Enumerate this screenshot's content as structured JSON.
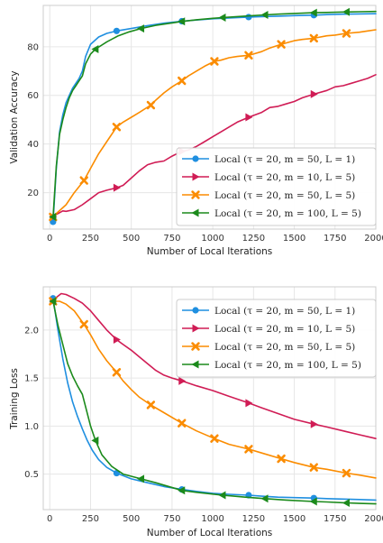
{
  "chart_data": [
    {
      "type": "line",
      "xlabel": "Number of Local Iterations",
      "ylabel": "Validation Accuracy",
      "xlim": [
        -40,
        2000
      ],
      "ylim": [
        5,
        97
      ],
      "xticks": [
        0,
        250,
        500,
        750,
        1000,
        1250,
        1500,
        1750,
        2000
      ],
      "yticks": [
        20,
        40,
        60,
        80
      ],
      "grid": true,
      "legend_position": "lower-right",
      "series": [
        {
          "name": "Local (τ = 20, m = 50, L = 1)",
          "color": "#1f8fe0",
          "marker": "circle",
          "markers_at": [
            20,
            410,
            810,
            1220,
            1620
          ],
          "x": [
            20,
            40,
            60,
            80,
            100,
            120,
            140,
            160,
            180,
            200,
            220,
            250,
            300,
            350,
            410,
            500,
            600,
            700,
            810,
            900,
            1000,
            1100,
            1220,
            1300,
            1400,
            1500,
            1620,
            1700,
            1800,
            1900,
            2000
          ],
          "y": [
            8,
            30,
            45,
            52,
            57,
            60,
            63,
            65,
            67,
            70,
            76,
            81,
            84,
            85.5,
            86.5,
            87.5,
            88.7,
            89.7,
            90.5,
            91,
            91.5,
            91.8,
            92.2,
            92.4,
            92.6,
            92.8,
            93,
            93.2,
            93.4,
            93.5,
            93.6
          ]
        },
        {
          "name": "Local (τ = 20, m = 10, L = 5)",
          "color": "#d01c55",
          "marker": "triangle-right",
          "markers_at": [
            20,
            410,
            810,
            1220,
            1620
          ],
          "x": [
            20,
            40,
            80,
            100,
            150,
            200,
            250,
            300,
            350,
            410,
            450,
            500,
            550,
            600,
            650,
            700,
            750,
            810,
            850,
            900,
            950,
            1000,
            1050,
            1100,
            1150,
            1220,
            1300,
            1350,
            1400,
            1450,
            1500,
            1550,
            1620,
            1700,
            1750,
            1800,
            1850,
            1900,
            1950,
            2000
          ],
          "y": [
            10,
            11,
            12.5,
            12.3,
            13,
            15,
            17.5,
            20,
            21,
            22,
            23,
            26,
            29,
            31.5,
            32.5,
            33,
            35,
            37,
            37.5,
            39,
            41,
            43,
            45,
            47,
            49,
            51,
            53,
            55,
            55.5,
            56.5,
            57.5,
            59,
            60.5,
            62,
            63.5,
            64,
            65,
            66,
            67,
            68.5
          ]
        },
        {
          "name": "Local (τ = 20, m = 50, L = 5)",
          "color": "#fb8c00",
          "marker": "x",
          "markers_at": [
            20,
            210,
            410,
            620,
            810,
            1010,
            1220,
            1420,
            1620,
            1820
          ],
          "x": [
            20,
            50,
            100,
            150,
            210,
            250,
            300,
            350,
            410,
            450,
            500,
            550,
            620,
            650,
            700,
            750,
            810,
            850,
            900,
            950,
            1010,
            1050,
            1100,
            1150,
            1220,
            1250,
            1300,
            1350,
            1420,
            1500,
            1550,
            1620,
            1700,
            1750,
            1820,
            1900,
            1950,
            2000
          ],
          "y": [
            10,
            12,
            15,
            20,
            25,
            30,
            36,
            41,
            47,
            49,
            51,
            53,
            56,
            58,
            61,
            63.5,
            66,
            68,
            70,
            72,
            74,
            74.5,
            75.5,
            76,
            76.5,
            77,
            78,
            79.5,
            81,
            82.5,
            83,
            83.5,
            84.5,
            84.8,
            85.5,
            86,
            86.5,
            87
          ]
        },
        {
          "name": "Local (τ = 20, m = 100, L = 5)",
          "color": "#1b8a1b",
          "marker": "triangle-left",
          "markers_at": [
            20,
            280,
            560,
            810,
            1060,
            1320,
            1620,
            1820
          ],
          "x": [
            20,
            40,
            60,
            80,
            100,
            120,
            140,
            160,
            180,
            200,
            220,
            250,
            280,
            350,
            420,
            480,
            560,
            650,
            750,
            810,
            900,
            1000,
            1060,
            1150,
            1250,
            1320,
            1400,
            1500,
            1620,
            1700,
            1820,
            1900,
            2000
          ],
          "y": [
            10,
            31,
            44,
            50,
            55,
            59,
            62,
            64,
            66,
            68,
            73,
            77,
            79,
            82,
            84.5,
            86,
            87.5,
            88.8,
            89.8,
            90.4,
            91.1,
            91.7,
            92,
            92.4,
            92.8,
            93.1,
            93.4,
            93.7,
            94,
            94.1,
            94.3,
            94.4,
            94.5
          ]
        }
      ]
    },
    {
      "type": "line",
      "xlabel": "Number of Local Iterations",
      "ylabel": "Training Loss",
      "xlim": [
        -40,
        2000
      ],
      "ylim": [
        0.13,
        2.45
      ],
      "xticks": [
        0,
        250,
        500,
        750,
        1000,
        1250,
        1500,
        1750,
        2000
      ],
      "yticks": [
        0.5,
        1.0,
        1.5,
        2.0
      ],
      "ytick_labels": [
        "0.5",
        "1.0",
        "1.5",
        "2.0"
      ],
      "grid": true,
      "legend_position": "top-right",
      "series": [
        {
          "name": "Local (τ = 20, m = 50, L = 1)",
          "color": "#1f8fe0",
          "marker": "circle",
          "markers_at": [
            20,
            410,
            810,
            1220,
            1620
          ],
          "x": [
            20,
            50,
            80,
            110,
            140,
            170,
            200,
            230,
            260,
            300,
            350,
            410,
            500,
            600,
            700,
            810,
            900,
            1000,
            1100,
            1220,
            1300,
            1400,
            1500,
            1620,
            1700,
            1800,
            1900,
            2000
          ],
          "y": [
            2.33,
            2.0,
            1.7,
            1.45,
            1.25,
            1.1,
            0.97,
            0.85,
            0.75,
            0.65,
            0.57,
            0.51,
            0.45,
            0.41,
            0.37,
            0.34,
            0.32,
            0.3,
            0.29,
            0.28,
            0.27,
            0.26,
            0.255,
            0.25,
            0.245,
            0.24,
            0.235,
            0.23
          ]
        },
        {
          "name": "Local (τ = 20, m = 10, L = 5)",
          "color": "#d01c55",
          "marker": "triangle-right",
          "markers_at": [
            20,
            410,
            810,
            1220,
            1620
          ],
          "x": [
            20,
            40,
            70,
            100,
            150,
            200,
            250,
            300,
            350,
            410,
            450,
            500,
            550,
            600,
            650,
            700,
            750,
            810,
            900,
            1000,
            1100,
            1220,
            1300,
            1400,
            1500,
            1620,
            1700,
            1800,
            1900,
            2000
          ],
          "y": [
            2.3,
            2.34,
            2.38,
            2.37,
            2.33,
            2.28,
            2.2,
            2.1,
            2.0,
            1.9,
            1.85,
            1.79,
            1.72,
            1.65,
            1.58,
            1.53,
            1.5,
            1.47,
            1.42,
            1.37,
            1.31,
            1.24,
            1.19,
            1.13,
            1.07,
            1.02,
            0.99,
            0.95,
            0.91,
            0.87
          ]
        },
        {
          "name": "Local (τ = 20, m = 50, L = 5)",
          "color": "#fb8c00",
          "marker": "x",
          "markers_at": [
            20,
            210,
            410,
            620,
            810,
            1010,
            1220,
            1420,
            1620,
            1820
          ],
          "x": [
            20,
            60,
            100,
            150,
            210,
            250,
            300,
            350,
            410,
            450,
            500,
            550,
            620,
            700,
            810,
            900,
            1010,
            1100,
            1220,
            1300,
            1420,
            1500,
            1620,
            1700,
            1820,
            1900,
            2000
          ],
          "y": [
            2.3,
            2.3,
            2.27,
            2.2,
            2.06,
            1.95,
            1.8,
            1.68,
            1.56,
            1.47,
            1.38,
            1.3,
            1.22,
            1.14,
            1.03,
            0.95,
            0.87,
            0.81,
            0.76,
            0.72,
            0.66,
            0.62,
            0.57,
            0.55,
            0.51,
            0.49,
            0.46
          ]
        },
        {
          "name": "Local (τ = 20, m = 100, L = 5)",
          "color": "#1b8a1b",
          "marker": "triangle-left",
          "markers_at": [
            20,
            280,
            560,
            810,
            1060,
            1320,
            1620,
            1820
          ],
          "x": [
            20,
            50,
            80,
            110,
            140,
            170,
            200,
            220,
            250,
            280,
            320,
            380,
            450,
            560,
            650,
            810,
            900,
            1060,
            1200,
            1320,
            1450,
            1620,
            1700,
            1820,
            1900,
            2000
          ],
          "y": [
            2.3,
            2.05,
            1.85,
            1.65,
            1.52,
            1.42,
            1.33,
            1.2,
            1.0,
            0.85,
            0.7,
            0.58,
            0.5,
            0.45,
            0.41,
            0.33,
            0.31,
            0.28,
            0.26,
            0.245,
            0.23,
            0.215,
            0.21,
            0.2,
            0.195,
            0.19
          ]
        }
      ]
    }
  ]
}
